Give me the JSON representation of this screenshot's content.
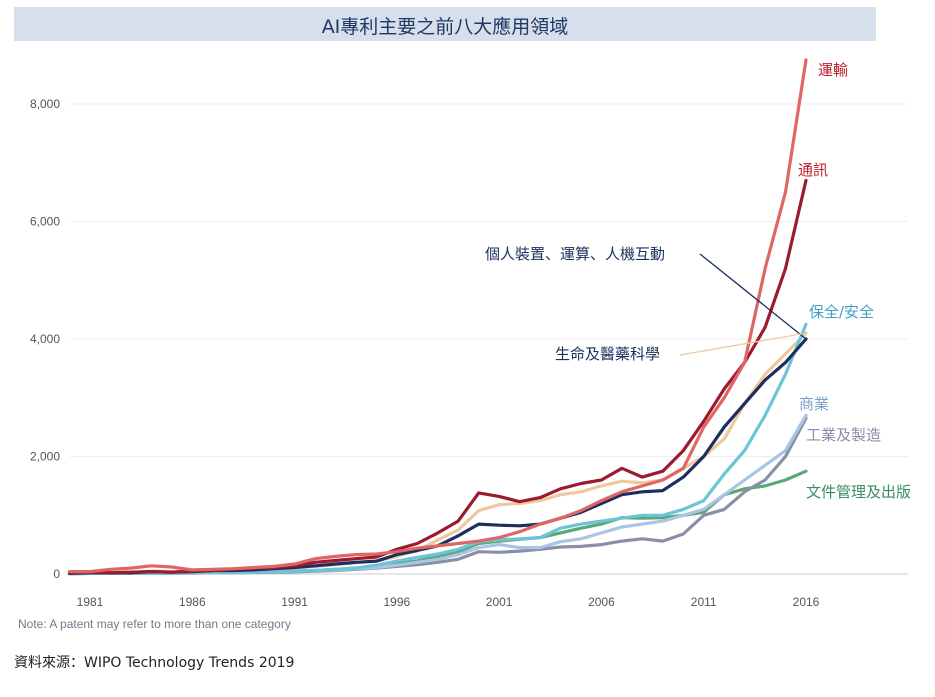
{
  "title": "AI專利主要之前八大應用領域",
  "note": "Note: A patent may refer to more than one category",
  "source": "資料來源：WIPO Technology Trends 2019",
  "chart_data": {
    "type": "line",
    "title": "AI專利主要之前八大應用領域",
    "xlabel": "",
    "ylabel": "",
    "x": [
      1980,
      1981,
      1982,
      1983,
      1984,
      1985,
      1986,
      1987,
      1988,
      1989,
      1990,
      1991,
      1992,
      1993,
      1994,
      1995,
      1996,
      1997,
      1998,
      1999,
      2000,
      2001,
      2002,
      2003,
      2004,
      2005,
      2006,
      2007,
      2008,
      2009,
      2010,
      2011,
      2012,
      2013,
      2014,
      2015,
      2016
    ],
    "x_ticks": [
      "1981",
      "1986",
      "1991",
      "1996",
      "2001",
      "2006",
      "2011",
      "2016"
    ],
    "x_tick_values": [
      1981,
      1986,
      1991,
      1996,
      2001,
      2006,
      2011,
      2016
    ],
    "ylim": [
      0,
      8800
    ],
    "xlim": [
      1980,
      2021
    ],
    "y_ticks": [
      0,
      2000,
      4000,
      6000,
      8000
    ],
    "y_tick_labels": [
      "0",
      "2,000",
      "4,000",
      "6,000",
      "8,000"
    ],
    "grid": "horizontal",
    "series": [
      {
        "name": "運輸",
        "color": "#e06666",
        "values": [
          40,
          40,
          80,
          100,
          140,
          120,
          70,
          80,
          90,
          110,
          130,
          170,
          260,
          300,
          330,
          340,
          380,
          440,
          480,
          520,
          560,
          620,
          720,
          850,
          950,
          1080,
          1250,
          1400,
          1500,
          1600,
          1800,
          2500,
          3000,
          3600,
          5200,
          6500,
          8750
        ]
      },
      {
        "name": "通訊",
        "color": "#9b1b30",
        "values": [
          20,
          30,
          20,
          30,
          40,
          30,
          50,
          60,
          80,
          100,
          110,
          140,
          200,
          230,
          260,
          290,
          420,
          520,
          700,
          900,
          1380,
          1320,
          1230,
          1300,
          1450,
          1540,
          1600,
          1800,
          1650,
          1750,
          2100,
          2600,
          3150,
          3600,
          4200,
          5200,
          6700
        ]
      },
      {
        "name": "個人裝置、運算、人機互動",
        "color": "#1c2f5e",
        "values": [
          10,
          20,
          20,
          20,
          40,
          30,
          40,
          60,
          60,
          70,
          90,
          110,
          140,
          170,
          200,
          220,
          330,
          400,
          480,
          650,
          850,
          830,
          820,
          850,
          950,
          1050,
          1200,
          1350,
          1400,
          1420,
          1650,
          2000,
          2500,
          2900,
          3300,
          3600,
          4000
        ]
      },
      {
        "name": "保全/安全",
        "color": "#6cc4d8",
        "values": [
          5,
          10,
          10,
          10,
          15,
          15,
          20,
          20,
          30,
          30,
          40,
          50,
          60,
          80,
          100,
          150,
          220,
          280,
          340,
          420,
          550,
          580,
          600,
          620,
          780,
          850,
          900,
          950,
          1000,
          1000,
          1100,
          1250,
          1700,
          2100,
          2700,
          3400,
          4250
        ]
      },
      {
        "name": "生命及醫藥科學",
        "color": "#f0c8a0",
        "values": [
          10,
          20,
          30,
          30,
          50,
          40,
          40,
          50,
          60,
          70,
          80,
          100,
          130,
          160,
          190,
          220,
          300,
          400,
          580,
          750,
          1080,
          1180,
          1200,
          1250,
          1350,
          1400,
          1500,
          1580,
          1550,
          1600,
          1800,
          2000,
          2300,
          2900,
          3400,
          3750,
          4100
        ]
      },
      {
        "name": "商業",
        "color": "#a9c4e4",
        "values": [
          5,
          10,
          10,
          10,
          15,
          15,
          20,
          20,
          25,
          30,
          40,
          50,
          60,
          70,
          90,
          110,
          150,
          200,
          250,
          330,
          450,
          500,
          450,
          450,
          550,
          600,
          700,
          800,
          850,
          900,
          1000,
          1100,
          1350,
          1600,
          1850,
          2100,
          2700
        ]
      },
      {
        "name": "工業及製造",
        "color": "#8a8fa8",
        "values": [
          5,
          10,
          10,
          10,
          15,
          15,
          15,
          20,
          20,
          25,
          30,
          35,
          50,
          60,
          80,
          100,
          130,
          160,
          200,
          250,
          380,
          370,
          390,
          420,
          460,
          470,
          500,
          560,
          600,
          560,
          680,
          1000,
          1100,
          1400,
          1600,
          2000,
          2650
        ]
      },
      {
        "name": "文件管理及出版",
        "color": "#5aa878",
        "values": [
          5,
          10,
          10,
          10,
          15,
          15,
          20,
          20,
          25,
          30,
          40,
          50,
          60,
          80,
          100,
          140,
          180,
          220,
          300,
          380,
          520,
          560,
          590,
          620,
          700,
          780,
          850,
          960,
          950,
          960,
          1000,
          1050,
          1350,
          1450,
          1500,
          1600,
          1750
        ]
      }
    ]
  }
}
